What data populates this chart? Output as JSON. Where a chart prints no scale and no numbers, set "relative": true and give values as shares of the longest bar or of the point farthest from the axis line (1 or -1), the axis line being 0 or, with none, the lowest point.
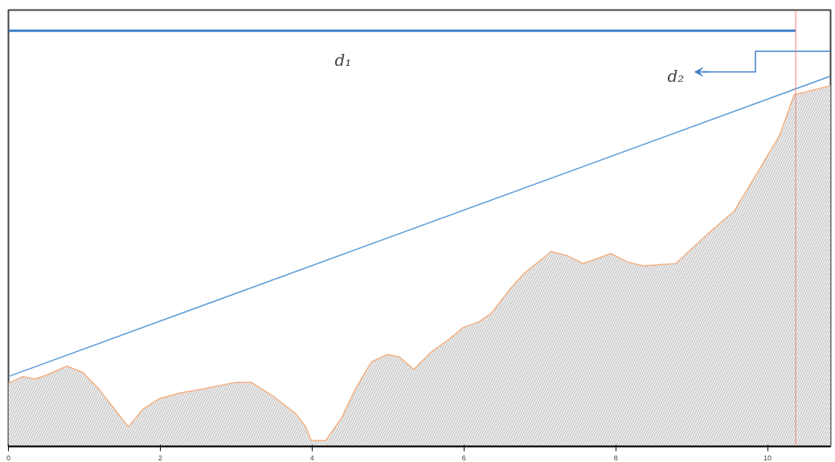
{
  "chart_data": {
    "type": "line",
    "relative": true,
    "xlim": [
      0,
      10.83
    ],
    "xticks": [
      0,
      2,
      4,
      6,
      8,
      10
    ],
    "tick_labels": "x",
    "grid": false,
    "series": [
      {
        "color": "#3f7fc8",
        "x": [
          0,
          10.37
        ],
        "values": [
          1.0,
          1.0
        ]
      },
      {
        "color": "#5b9bd5",
        "x": [
          0,
          10.83
        ],
        "values": [
          0.168,
          0.891
        ]
      },
      {
        "type": "area",
        "color": "#f4b183",
        "x": [
          0,
          0.19,
          0.35,
          0.51,
          0.77,
          0.98,
          1.19,
          1.4,
          1.58,
          1.77,
          1.98,
          2.25,
          2.62,
          2.99,
          3.2,
          3.51,
          3.78,
          3.91,
          3.99,
          4.18,
          4.39,
          4.57,
          4.78,
          4.99,
          5.15,
          5.34,
          5.57,
          5.78,
          5.99,
          6.2,
          6.36,
          6.62,
          6.78,
          7.15,
          7.36,
          7.57,
          7.94,
          8.15,
          8.36,
          8.79,
          9.05,
          9.26,
          9.56,
          9.84,
          10.16,
          10.35,
          10.42,
          10.83
        ],
        "values": [
          0.152,
          0.168,
          0.162,
          0.172,
          0.193,
          0.178,
          0.138,
          0.089,
          0.047,
          0.089,
          0.114,
          0.128,
          0.14,
          0.154,
          0.154,
          0.118,
          0.079,
          0.049,
          0.014,
          0.014,
          0.069,
          0.138,
          0.203,
          0.221,
          0.215,
          0.185,
          0.227,
          0.254,
          0.286,
          0.3,
          0.32,
          0.381,
          0.414,
          0.469,
          0.459,
          0.44,
          0.464,
          0.444,
          0.434,
          0.44,
          0.484,
          0.519,
          0.566,
          0.651,
          0.749,
          0.846,
          0.849,
          0.868
        ]
      }
    ],
    "ref_lines": [
      {
        "axis": "x",
        "value": 10.37,
        "color": "#f08080"
      }
    ],
    "annotations": [
      "d₁",
      "d₂"
    ]
  }
}
